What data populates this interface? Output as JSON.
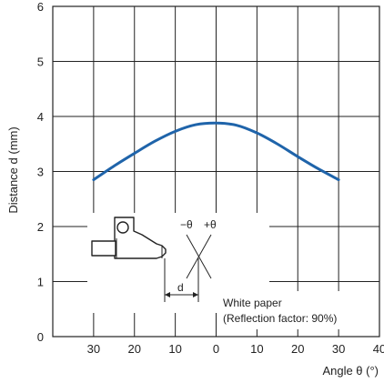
{
  "chart_data": {
    "type": "line",
    "xlabel": "Angle θ (°)",
    "ylabel": "Distance d (mm)",
    "x_tick_labels": [
      "30",
      "20",
      "10",
      "0",
      "10",
      "20",
      "30",
      "40"
    ],
    "y_tick_labels": [
      "0",
      "1",
      "2",
      "3",
      "4",
      "5",
      "6"
    ],
    "xlim": [
      -40,
      40
    ],
    "ylim": [
      0,
      6
    ],
    "grid": true,
    "series": [
      {
        "color": "#1f64aa",
        "x": [
          -30,
          -25,
          -20,
          -15,
          -10,
          -5,
          0,
          5,
          10,
          15,
          20,
          25,
          30
        ],
        "y": [
          2.85,
          3.1,
          3.33,
          3.55,
          3.73,
          3.85,
          3.88,
          3.84,
          3.7,
          3.5,
          3.27,
          3.05,
          2.85
        ]
      }
    ],
    "annotations": {
      "minus_theta": "−θ",
      "plus_theta": "+θ",
      "d_label": "d",
      "paper_line1": "White paper",
      "paper_line2": "(Reflection factor: 90%)"
    }
  }
}
